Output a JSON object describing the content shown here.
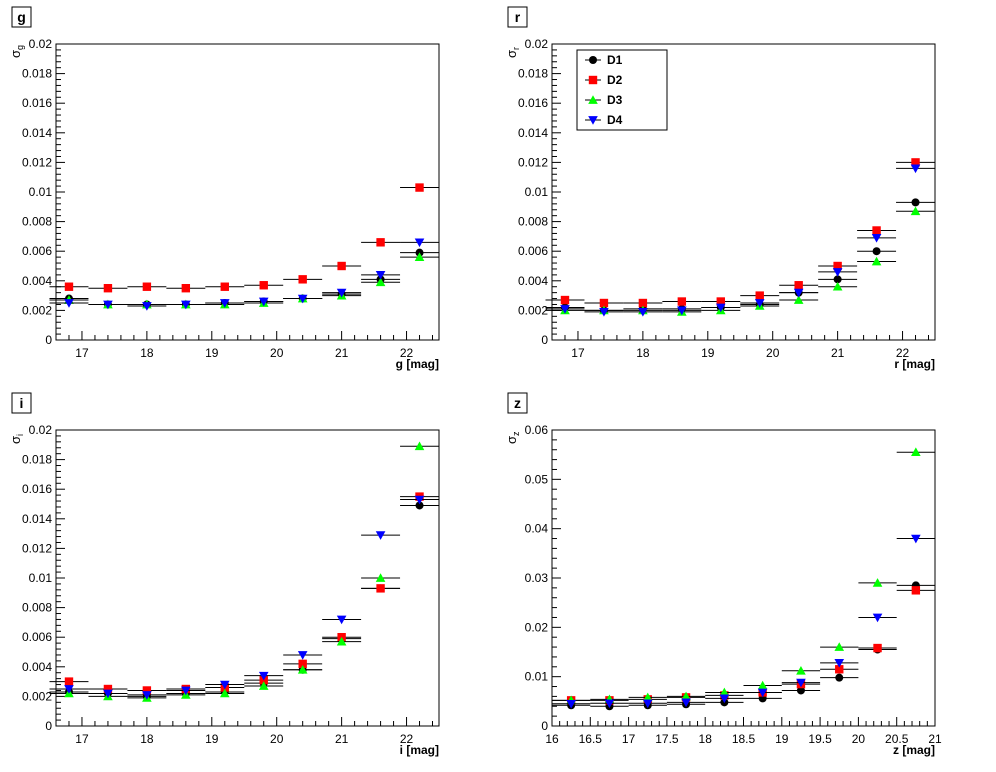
{
  "chart_data": [
    {
      "type": "scatter",
      "panel_label": "g",
      "xlabel": "g [mag]",
      "ylabel": "σ",
      "ylabel_sub": "g",
      "xlim": [
        16.6,
        22.5
      ],
      "ylim": [
        0,
        0.02
      ],
      "xticks": [
        17,
        18,
        19,
        20,
        21,
        22
      ],
      "xtick_labels": [
        "17",
        "18",
        "19",
        "20",
        "21",
        "22"
      ],
      "yticks": [
        0,
        0.002,
        0.004,
        0.006,
        0.008,
        0.01,
        0.012,
        0.014,
        0.016,
        0.018,
        0.02
      ],
      "ytick_labels": [
        "0",
        "0.002",
        "0.004",
        "0.006",
        "0.008",
        "0.01",
        "0.012",
        "0.014",
        "0.016",
        "0.018",
        "0.02"
      ],
      "x": [
        16.8,
        17.4,
        18.0,
        18.6,
        19.2,
        19.8,
        20.4,
        21.0,
        21.6,
        22.2
      ],
      "xerr": 0.3,
      "series": [
        {
          "name": "D1",
          "values": [
            0.0028,
            0.0024,
            0.0024,
            0.0024,
            0.0025,
            0.0026,
            0.0028,
            0.0031,
            0.0041,
            0.0059
          ]
        },
        {
          "name": "D2",
          "values": [
            0.0036,
            0.0035,
            0.0036,
            0.0035,
            0.0036,
            0.0037,
            0.0041,
            0.005,
            0.0066,
            0.0103
          ]
        },
        {
          "name": "D3",
          "values": [
            0.0027,
            0.0024,
            0.0024,
            0.0024,
            0.0024,
            0.0025,
            0.0028,
            0.003,
            0.0039,
            0.0056
          ]
        },
        {
          "name": "D4",
          "values": [
            0.0025,
            0.0024,
            0.0023,
            0.0024,
            0.0025,
            0.0026,
            0.0028,
            0.0032,
            0.0044,
            0.0066
          ]
        }
      ],
      "legend": false
    },
    {
      "type": "scatter",
      "panel_label": "r",
      "xlabel": "r [mag]",
      "ylabel": "σ",
      "ylabel_sub": "r",
      "xlim": [
        16.6,
        22.5
      ],
      "ylim": [
        0,
        0.02
      ],
      "xticks": [
        17,
        18,
        19,
        20,
        21,
        22
      ],
      "xtick_labels": [
        "17",
        "18",
        "19",
        "20",
        "21",
        "22"
      ],
      "yticks": [
        0,
        0.002,
        0.004,
        0.006,
        0.008,
        0.01,
        0.012,
        0.014,
        0.016,
        0.018,
        0.02
      ],
      "ytick_labels": [
        "0",
        "0.002",
        "0.004",
        "0.006",
        "0.008",
        "0.01",
        "0.012",
        "0.014",
        "0.016",
        "0.018",
        "0.02"
      ],
      "x": [
        16.8,
        17.4,
        18.0,
        18.6,
        19.2,
        19.8,
        20.4,
        21.0,
        21.6,
        22.2
      ],
      "xerr": 0.3,
      "series": [
        {
          "name": "D1",
          "values": [
            0.0022,
            0.002,
            0.0021,
            0.0021,
            0.0022,
            0.0024,
            0.0032,
            0.0041,
            0.006,
            0.0093
          ]
        },
        {
          "name": "D2",
          "values": [
            0.0027,
            0.0025,
            0.0025,
            0.0026,
            0.0026,
            0.003,
            0.0037,
            0.005,
            0.0074,
            0.012
          ]
        },
        {
          "name": "D3",
          "values": [
            0.002,
            0.002,
            0.002,
            0.0019,
            0.002,
            0.0023,
            0.0027,
            0.0036,
            0.0053,
            0.0087
          ]
        },
        {
          "name": "D4",
          "values": [
            0.0021,
            0.0019,
            0.0019,
            0.002,
            0.0022,
            0.0025,
            0.0032,
            0.0046,
            0.0069,
            0.0116
          ]
        }
      ],
      "legend": true,
      "legend_entries": [
        "D1",
        "D2",
        "D3",
        "D4"
      ]
    },
    {
      "type": "scatter",
      "panel_label": "i",
      "xlabel": "i [mag]",
      "ylabel": "σ",
      "ylabel_sub": "i",
      "xlim": [
        16.6,
        22.5
      ],
      "ylim": [
        0,
        0.02
      ],
      "xticks": [
        17,
        18,
        19,
        20,
        21,
        22
      ],
      "xtick_labels": [
        "17",
        "18",
        "19",
        "20",
        "21",
        "22"
      ],
      "yticks": [
        0,
        0.002,
        0.004,
        0.006,
        0.008,
        0.01,
        0.012,
        0.014,
        0.016,
        0.018,
        0.02
      ],
      "ytick_labels": [
        "0",
        "0.002",
        "0.004",
        "0.006",
        "0.008",
        "0.01",
        "0.012",
        "0.014",
        "0.016",
        "0.018",
        "0.02"
      ],
      "x": [
        16.8,
        17.4,
        18.0,
        18.6,
        19.2,
        19.8,
        20.4,
        21.0,
        21.6,
        22.2
      ],
      "xerr": 0.3,
      "series": [
        {
          "name": "D1",
          "values": [
            0.0023,
            0.0022,
            0.002,
            0.0022,
            0.0023,
            0.0029,
            0.0038,
            0.0059,
            0.0093,
            0.0149
          ]
        },
        {
          "name": "D2",
          "values": [
            0.003,
            0.0025,
            0.0024,
            0.0025,
            0.0026,
            0.0031,
            0.0042,
            0.006,
            0.0093,
            0.0155
          ]
        },
        {
          "name": "D3",
          "values": [
            0.0022,
            0.002,
            0.0019,
            0.0021,
            0.0022,
            0.0027,
            0.0038,
            0.0057,
            0.01,
            0.0189
          ]
        },
        {
          "name": "D4",
          "values": [
            0.0025,
            0.0022,
            0.0021,
            0.0024,
            0.0028,
            0.0034,
            0.0048,
            0.0072,
            0.0129,
            0.0153
          ]
        }
      ],
      "legend": false
    },
    {
      "type": "scatter",
      "panel_label": "z",
      "xlabel": "z [mag]",
      "ylabel": "σ",
      "ylabel_sub": "z",
      "xlim": [
        16.0,
        21.0
      ],
      "ylim": [
        0,
        0.06
      ],
      "xticks": [
        16,
        16.5,
        17,
        17.5,
        18,
        18.5,
        19,
        19.5,
        20,
        20.5,
        21
      ],
      "xtick_labels": [
        "16",
        "16.5",
        "17",
        "17.5",
        "18",
        "18.5",
        "19",
        "19.5",
        "20",
        "20.5",
        "21"
      ],
      "yticks": [
        0,
        0.01,
        0.02,
        0.03,
        0.04,
        0.05,
        0.06
      ],
      "ytick_labels": [
        "0",
        "0.01",
        "0.02",
        "0.03",
        "0.04",
        "0.05",
        "0.06"
      ],
      "x": [
        16.25,
        16.75,
        17.25,
        17.75,
        18.25,
        18.75,
        19.25,
        19.75,
        20.25,
        20.75
      ],
      "xerr": 0.25,
      "series": [
        {
          "name": "D1",
          "values": [
            0.0042,
            0.004,
            0.0042,
            0.0044,
            0.0048,
            0.0056,
            0.0072,
            0.0098,
            0.0155,
            0.0285
          ]
        },
        {
          "name": "D2",
          "values": [
            0.0052,
            0.0052,
            0.0054,
            0.0058,
            0.0062,
            0.0068,
            0.0085,
            0.0115,
            0.0158,
            0.0275
          ]
        },
        {
          "name": "D3",
          "values": [
            0.0052,
            0.0054,
            0.0058,
            0.006,
            0.0068,
            0.0082,
            0.0112,
            0.016,
            0.029,
            0.0555
          ]
        },
        {
          "name": "D4",
          "values": [
            0.0045,
            0.0046,
            0.0046,
            0.0048,
            0.0056,
            0.0068,
            0.0088,
            0.0128,
            0.022,
            0.038
          ]
        }
      ],
      "legend": false
    }
  ],
  "series_colors": {
    "D1": "#000000",
    "D2": "#ff0000",
    "D3": "#00ff00",
    "D4": "#0000ff"
  },
  "series_markers": {
    "D1": "circle",
    "D2": "square",
    "D3": "triangle-up",
    "D4": "triangle-down"
  }
}
